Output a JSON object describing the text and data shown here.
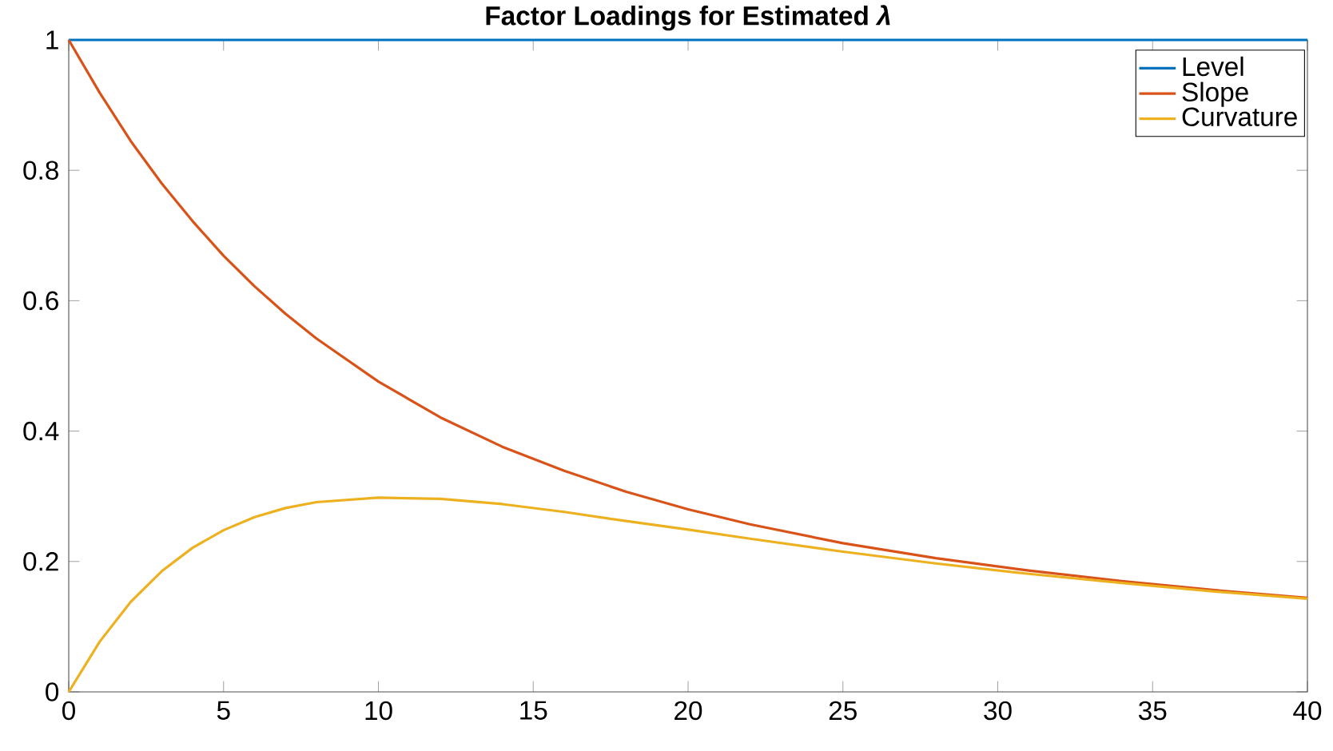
{
  "chart_data": {
    "type": "line",
    "title": "Factor Loadings for Estimated *λ*",
    "x": [
      0,
      1,
      2,
      3,
      4,
      5,
      6,
      7,
      8,
      10,
      12,
      14,
      16,
      18,
      20,
      22,
      25,
      28,
      31,
      34,
      37,
      40
    ],
    "series": [
      {
        "name": "Level",
        "color": "#0072bd",
        "values": [
          1,
          1,
          1,
          1,
          1,
          1,
          1,
          1,
          1,
          1,
          1,
          1,
          1,
          1,
          1,
          1,
          1,
          1,
          1,
          1,
          1,
          1
        ]
      },
      {
        "name": "Slope",
        "color": "#d95319",
        "values": [
          1,
          0.919,
          0.845,
          0.78,
          0.722,
          0.669,
          0.622,
          0.58,
          0.542,
          0.476,
          0.421,
          0.376,
          0.339,
          0.307,
          0.28,
          0.257,
          0.228,
          0.205,
          0.186,
          0.17,
          0.156,
          0.144
        ]
      },
      {
        "name": "Curvature",
        "color": "#edb120",
        "values": [
          0,
          0.077,
          0.138,
          0.185,
          0.221,
          0.248,
          0.268,
          0.282,
          0.291,
          0.298,
          0.296,
          0.288,
          0.276,
          0.262,
          0.249,
          0.235,
          0.215,
          0.197,
          0.181,
          0.167,
          0.154,
          0.143
        ]
      }
    ],
    "xlim": [
      0,
      40
    ],
    "xticks": [
      0,
      5,
      10,
      15,
      20,
      25,
      30,
      35,
      40
    ],
    "ylim": [
      0,
      1
    ],
    "yticks": [
      0,
      0.2,
      0.4,
      0.6,
      0.8,
      1
    ],
    "legend": "top right",
    "grid": false,
    "marker": "none",
    "line_style": "solid"
  }
}
